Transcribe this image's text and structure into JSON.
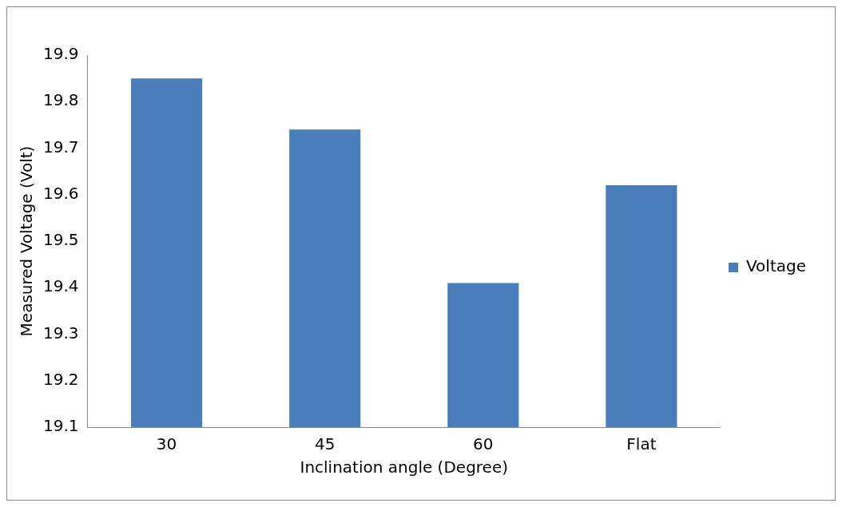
{
  "chart_data": {
    "type": "bar",
    "xlabel": "Inclination angle (Degree)",
    "ylabel": "Measured Voltage (Volt)",
    "categories": [
      "30",
      "45",
      "60",
      "Flat"
    ],
    "series": [
      {
        "name": "Voltage",
        "color": "#4a7ebb",
        "values": [
          19.85,
          19.74,
          19.41,
          19.62
        ]
      }
    ],
    "ylim": [
      19.1,
      19.9
    ],
    "yticks": [
      19.1,
      19.2,
      19.3,
      19.4,
      19.5,
      19.6,
      19.7,
      19.8,
      19.9
    ],
    "grid": false,
    "legend": "right"
  }
}
